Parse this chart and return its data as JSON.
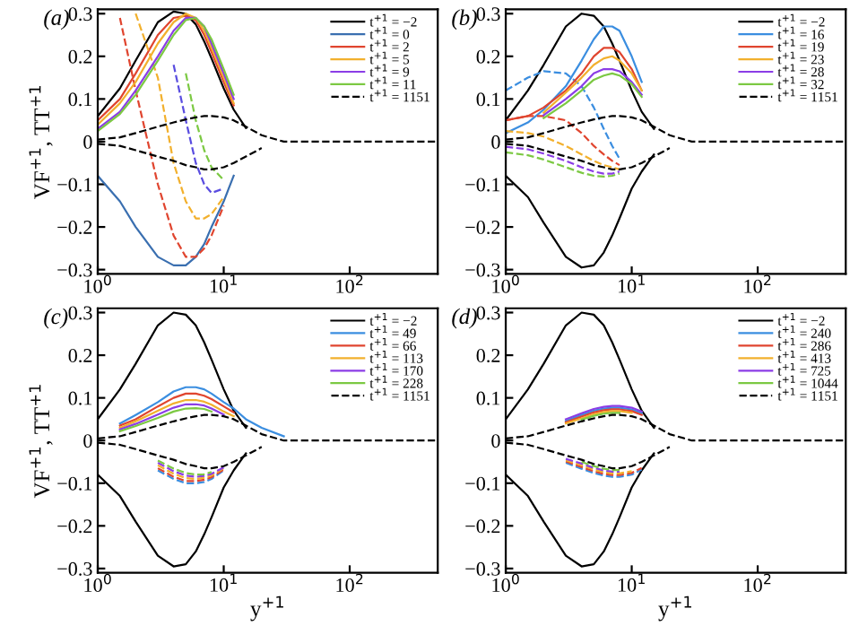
{
  "chart_data": [
    {
      "type": "line",
      "title": "(a)",
      "ylabel": "VF$^{+1}$, TT$^{+1}$",
      "log": "x",
      "legend": "top right",
      "xlim": [
        1,
        500
      ],
      "ylim": [
        -0.31,
        0.31
      ],
      "xticks": [
        {
          "value": 1,
          "label": "10$^{0}$"
        },
        {
          "value": 10,
          "label": "10$^{1}$"
        },
        {
          "value": 100,
          "label": "10$^{2}$"
        }
      ],
      "yticks": [
        {
          "value": -0.3,
          "label": "−0.3"
        },
        {
          "value": -0.2,
          "label": "−0.2"
        },
        {
          "value": -0.1,
          "label": "−0.1"
        },
        0,
        0.1,
        0.2,
        0.3
      ],
      "x": [
        1,
        1.5,
        2,
        3,
        4,
        5,
        6,
        7,
        8,
        10,
        12,
        15,
        20,
        30,
        50,
        100,
        500
      ],
      "series": [
        {
          "name": "t$^{+1}$ = −2",
          "color": "#000000",
          "line_style": "solid",
          "values": [
            0.06,
            0.125,
            0.19,
            0.28,
            0.305,
            0.3,
            0.275,
            0.235,
            0.195,
            0.125,
            0.075,
            0.032,
            null,
            null,
            null,
            null,
            null
          ]
        },
        {
          "name": "t$^{+1}$ = 0",
          "color": "#3a6fb0",
          "line_style": "solid",
          "values": [
            -0.08,
            -0.14,
            -0.2,
            -0.27,
            -0.29,
            -0.29,
            -0.27,
            -0.24,
            -0.2,
            -0.14,
            -0.08,
            null,
            null,
            null,
            null,
            null,
            null
          ]
        },
        {
          "name": "t$^{+1}$ = 2",
          "color": "#e0452f",
          "line_style": "solid",
          "values": [
            0.05,
            0.1,
            0.16,
            0.25,
            0.29,
            0.295,
            0.285,
            0.25,
            0.21,
            0.14,
            0.085,
            null,
            null,
            null,
            null,
            null,
            null
          ]
        },
        {
          "color": "#e0452f",
          "line_style": "dashed",
          "values": [
            null,
            0.29,
            0.12,
            -0.1,
            -0.22,
            -0.27,
            -0.27,
            -0.25,
            -0.22,
            -0.15,
            null,
            null,
            null,
            null,
            null,
            null,
            null
          ]
        },
        {
          "name": "t$^{+1}$ = 5",
          "color": "#f2b02d",
          "line_style": "solid",
          "values": [
            0.04,
            0.09,
            0.14,
            0.23,
            0.28,
            0.3,
            0.29,
            0.26,
            0.22,
            0.15,
            0.09,
            null,
            null,
            null,
            null,
            null,
            null
          ]
        },
        {
          "color": "#f2b02d",
          "line_style": "dashed",
          "values": [
            null,
            null,
            0.3,
            0.15,
            -0.05,
            -0.14,
            -0.18,
            -0.18,
            -0.17,
            -0.13,
            null,
            null,
            null,
            null,
            null,
            null,
            null
          ]
        },
        {
          "name": "t$^{+1}$ = 9",
          "color": "#8b3de6",
          "line_style": "solid",
          "values": [
            0.03,
            0.07,
            0.12,
            0.2,
            0.26,
            0.29,
            0.29,
            0.27,
            0.23,
            0.16,
            0.1,
            null,
            null,
            null,
            null,
            null,
            null
          ]
        },
        {
          "color": "#5a4de0",
          "line_style": "dashed",
          "values": [
            null,
            null,
            null,
            null,
            0.18,
            0.05,
            -0.05,
            -0.1,
            -0.12,
            -0.11,
            null,
            null,
            null,
            null,
            null,
            null,
            null
          ]
        },
        {
          "name": "t$^{+1}$ = 11",
          "color": "#7cc943",
          "line_style": "solid",
          "values": [
            0.025,
            0.065,
            0.11,
            0.19,
            0.25,
            0.285,
            0.29,
            0.27,
            0.24,
            0.17,
            0.11,
            null,
            null,
            null,
            null,
            null,
            null
          ]
        },
        {
          "color": "#7cc943",
          "line_style": "dashed",
          "values": [
            null,
            null,
            null,
            null,
            null,
            0.16,
            0.05,
            -0.02,
            -0.06,
            -0.09,
            null,
            null,
            null,
            null,
            null,
            null,
            null
          ]
        },
        {
          "name": "t$^{+1}$ = 1151",
          "color": "#000000",
          "line_style": "dashed",
          "values": [
            0.005,
            0.01,
            0.02,
            0.035,
            0.045,
            0.052,
            0.057,
            0.06,
            0.06,
            0.057,
            0.05,
            0.035,
            0.015,
            0,
            0,
            0,
            0
          ]
        },
        {
          "color": "#000000",
          "line_style": "dashed",
          "values": [
            -0.005,
            -0.01,
            -0.02,
            -0.035,
            -0.045,
            -0.055,
            -0.06,
            -0.065,
            -0.065,
            -0.06,
            -0.05,
            -0.035,
            -0.015,
            null,
            null,
            null,
            null
          ]
        }
      ]
    },
    {
      "type": "line",
      "title": "(b)",
      "log": "x",
      "legend": "top right",
      "xlim": [
        1,
        500
      ],
      "ylim": [
        -0.31,
        0.31
      ],
      "xticks": [
        {
          "value": 1,
          "label": "10$^{0}$"
        },
        {
          "value": 10,
          "label": "10$^{1}$"
        },
        {
          "value": 100,
          "label": "10$^{2}$"
        }
      ],
      "yticks": [
        {
          "value": -0.3,
          "label": "−0.3"
        },
        {
          "value": -0.2,
          "label": "−0.2"
        },
        {
          "value": -0.1,
          "label": "−0.1"
        },
        0,
        0.1,
        0.2,
        0.3
      ],
      "x": [
        1,
        1.5,
        2,
        3,
        4,
        5,
        6,
        7,
        8,
        10,
        12,
        15,
        20,
        30,
        50,
        100,
        500
      ],
      "series": [
        {
          "name": "t$^{+1}$ = −2",
          "color": "#000000",
          "line_style": "solid",
          "values": [
            0.05,
            0.12,
            0.18,
            0.27,
            0.3,
            0.295,
            0.27,
            0.23,
            0.19,
            0.12,
            0.07,
            0.03,
            null,
            null,
            null,
            null,
            null
          ]
        },
        {
          "color": "#000000",
          "line_style": "solid",
          "values": [
            -0.08,
            -0.13,
            -0.19,
            -0.27,
            -0.295,
            -0.29,
            -0.26,
            -0.22,
            -0.18,
            -0.11,
            -0.07,
            -0.03,
            null,
            null,
            null,
            null,
            null
          ]
        },
        {
          "name": "t$^{+1}$ = 16",
          "color": "#3b8ee0",
          "line_style": "solid",
          "values": [
            0.02,
            0.045,
            0.075,
            0.13,
            0.19,
            0.24,
            0.27,
            0.27,
            0.26,
            0.2,
            0.14,
            null,
            null,
            null,
            null,
            null,
            null
          ]
        },
        {
          "color": "#3b8ee0",
          "line_style": "dashed",
          "values": [
            0.12,
            0.15,
            0.165,
            0.16,
            0.13,
            0.08,
            0.03,
            -0.01,
            -0.04,
            null,
            null,
            null,
            null,
            null,
            null,
            null,
            null
          ]
        },
        {
          "name": "t$^{+1}$ = 19",
          "color": "#e0452f",
          "line_style": "solid",
          "values": [
            0.05,
            0.06,
            0.08,
            0.12,
            0.16,
            0.2,
            0.22,
            0.22,
            0.21,
            0.17,
            0.12,
            null,
            null,
            null,
            null,
            null,
            null
          ]
        },
        {
          "color": "#e0452f",
          "line_style": "dashed",
          "values": [
            0.05,
            0.06,
            0.06,
            0.05,
            0.02,
            -0.01,
            -0.03,
            -0.045,
            -0.055,
            null,
            null,
            null,
            null,
            null,
            null,
            null,
            null
          ]
        },
        {
          "name": "t$^{+1}$ = 23",
          "color": "#f2b02d",
          "line_style": "solid",
          "values": [
            null,
            null,
            0.068,
            0.115,
            0.15,
            0.18,
            0.195,
            0.2,
            0.19,
            0.16,
            0.12,
            null,
            null,
            null,
            null,
            null,
            null
          ]
        },
        {
          "color": "#f2b02d",
          "line_style": "dashed",
          "values": [
            0.025,
            0.02,
            0.012,
            -0.01,
            -0.03,
            -0.045,
            -0.055,
            -0.06,
            -0.065,
            null,
            null,
            null,
            null,
            null,
            null,
            null,
            null
          ]
        },
        {
          "name": "t$^{+1}$ = 28",
          "color": "#8b3de6",
          "line_style": "solid",
          "values": [
            null,
            null,
            0.062,
            0.1,
            0.13,
            0.16,
            0.17,
            0.17,
            0.165,
            0.14,
            0.11,
            null,
            null,
            null,
            null,
            null,
            null
          ]
        },
        {
          "color": "#8b3de6",
          "line_style": "dashed",
          "values": [
            -0.012,
            -0.018,
            -0.028,
            -0.045,
            -0.06,
            -0.07,
            -0.075,
            -0.075,
            -0.07,
            null,
            null,
            null,
            null,
            null,
            null,
            null,
            null
          ]
        },
        {
          "name": "t$^{+1}$ = 32",
          "color": "#7cc943",
          "line_style": "solid",
          "values": [
            null,
            null,
            0.055,
            0.09,
            0.12,
            0.145,
            0.155,
            0.16,
            0.155,
            0.135,
            0.105,
            null,
            null,
            null,
            null,
            null,
            null
          ]
        },
        {
          "color": "#7cc943",
          "line_style": "dashed",
          "values": [
            -0.025,
            -0.032,
            -0.042,
            -0.06,
            -0.073,
            -0.08,
            -0.082,
            -0.08,
            -0.075,
            null,
            null,
            null,
            null,
            null,
            null,
            null,
            null
          ]
        },
        {
          "name": "t$^{+1}$ = 1151",
          "color": "#000000",
          "line_style": "dashed",
          "values": [
            0.005,
            0.01,
            0.02,
            0.035,
            0.045,
            0.052,
            0.057,
            0.06,
            0.06,
            0.057,
            0.05,
            0.035,
            0.015,
            0,
            0,
            0,
            0
          ]
        },
        {
          "color": "#000000",
          "line_style": "dashed",
          "values": [
            -0.005,
            -0.01,
            -0.02,
            -0.035,
            -0.045,
            -0.055,
            -0.06,
            -0.065,
            -0.065,
            -0.06,
            -0.05,
            -0.035,
            -0.015,
            null,
            null,
            null,
            null
          ]
        }
      ]
    },
    {
      "type": "line",
      "title": "(c)",
      "xlabel": "y$^{+1}$",
      "ylabel": "VF$^{+1}$, TT$^{+1}$",
      "log": "x",
      "legend": "top right",
      "xlim": [
        1,
        500
      ],
      "ylim": [
        -0.31,
        0.31
      ],
      "xticks": [
        {
          "value": 1,
          "label": "10$^{0}$"
        },
        {
          "value": 10,
          "label": "10$^{1}$"
        },
        {
          "value": 100,
          "label": "10$^{2}$"
        }
      ],
      "yticks": [
        {
          "value": -0.3,
          "label": "−0.3"
        },
        {
          "value": -0.2,
          "label": "−0.2"
        },
        {
          "value": -0.1,
          "label": "−0.1"
        },
        0,
        0.1,
        0.2,
        0.3
      ],
      "x": [
        1,
        1.5,
        2,
        3,
        4,
        5,
        6,
        7,
        8,
        10,
        12,
        15,
        20,
        30,
        50,
        100,
        500
      ],
      "series": [
        {
          "name": "t$^{+1}$ = −2",
          "color": "#000000",
          "line_style": "solid",
          "values": [
            0.05,
            0.12,
            0.18,
            0.27,
            0.3,
            0.295,
            0.27,
            0.23,
            0.19,
            0.12,
            0.07,
            0.03,
            null,
            null,
            null,
            null,
            null
          ]
        },
        {
          "color": "#000000",
          "line_style": "solid",
          "values": [
            -0.08,
            -0.13,
            -0.19,
            -0.27,
            -0.295,
            -0.29,
            -0.26,
            -0.22,
            -0.18,
            -0.11,
            -0.07,
            -0.03,
            null,
            null,
            null,
            null,
            null
          ]
        },
        {
          "name": "t$^{+1}$ = 49",
          "color": "#3b8ee0",
          "line_style": "solid",
          "values": [
            null,
            0.04,
            0.06,
            0.09,
            0.115,
            0.125,
            0.125,
            0.12,
            0.11,
            0.09,
            0.075,
            0.05,
            0.03,
            0.01,
            null,
            null,
            null
          ]
        },
        {
          "color": "#3b8ee0",
          "line_style": "dashed",
          "values": [
            null,
            null,
            null,
            -0.07,
            -0.09,
            -0.1,
            -0.1,
            -0.097,
            -0.09,
            -0.07,
            null,
            null,
            null,
            null,
            null,
            null,
            null
          ]
        },
        {
          "name": "t$^{+1}$ = 66",
          "color": "#e0452f",
          "line_style": "solid",
          "values": [
            null,
            0.035,
            0.05,
            0.08,
            0.1,
            0.11,
            0.11,
            0.105,
            0.097,
            0.08,
            0.066,
            null,
            null,
            null,
            null,
            null,
            null
          ]
        },
        {
          "color": "#e0452f",
          "line_style": "dashed",
          "values": [
            null,
            null,
            null,
            -0.065,
            -0.085,
            -0.095,
            -0.095,
            -0.092,
            -0.086,
            -0.068,
            null,
            null,
            null,
            null,
            null,
            null,
            null
          ]
        },
        {
          "name": "t$^{+1}$ = 113",
          "color": "#f2b02d",
          "line_style": "solid",
          "values": [
            null,
            0.03,
            0.045,
            0.07,
            0.087,
            0.095,
            0.095,
            0.091,
            0.084,
            0.068,
            0.057,
            null,
            null,
            null,
            null,
            null,
            null
          ]
        },
        {
          "color": "#f2b02d",
          "line_style": "dashed",
          "values": [
            null,
            null,
            null,
            -0.058,
            -0.078,
            -0.088,
            -0.09,
            -0.087,
            -0.082,
            -0.065,
            null,
            null,
            null,
            null,
            null,
            null,
            null
          ]
        },
        {
          "name": "t$^{+1}$ = 170",
          "color": "#8b3de6",
          "line_style": "solid",
          "values": [
            null,
            0.026,
            0.039,
            0.061,
            0.077,
            0.085,
            0.085,
            0.082,
            0.075,
            0.061,
            null,
            null,
            null,
            null,
            null,
            null,
            null
          ]
        },
        {
          "color": "#8b3de6",
          "line_style": "dashed",
          "values": [
            null,
            null,
            null,
            -0.052,
            -0.072,
            -0.082,
            -0.085,
            -0.083,
            -0.078,
            -0.063,
            null,
            null,
            null,
            null,
            null,
            null,
            null
          ]
        },
        {
          "name": "t$^{+1}$ = 228",
          "color": "#7cc943",
          "line_style": "solid",
          "values": [
            null,
            0.022,
            0.034,
            0.053,
            0.068,
            0.075,
            0.076,
            0.074,
            0.068,
            null,
            null,
            null,
            null,
            null,
            null,
            null,
            null
          ]
        },
        {
          "color": "#7cc943",
          "line_style": "dashed",
          "values": [
            null,
            null,
            null,
            -0.047,
            -0.066,
            -0.076,
            -0.08,
            -0.079,
            -0.074,
            null,
            null,
            null,
            null,
            null,
            null,
            null,
            null
          ]
        },
        {
          "name": "t$^{+1}$ = 1151",
          "color": "#000000",
          "line_style": "dashed",
          "values": [
            0.005,
            0.01,
            0.02,
            0.035,
            0.045,
            0.052,
            0.057,
            0.06,
            0.06,
            0.057,
            0.05,
            0.035,
            0.015,
            0,
            0,
            0,
            0
          ]
        },
        {
          "color": "#000000",
          "line_style": "dashed",
          "values": [
            -0.005,
            -0.01,
            -0.02,
            -0.035,
            -0.045,
            -0.055,
            -0.06,
            -0.065,
            -0.065,
            -0.06,
            -0.05,
            -0.035,
            -0.015,
            null,
            null,
            null,
            null
          ]
        }
      ]
    },
    {
      "type": "line",
      "title": "(d)",
      "xlabel": "y$^{+1}$",
      "log": "x",
      "legend": "top right",
      "xlim": [
        1,
        500
      ],
      "ylim": [
        -0.31,
        0.31
      ],
      "xticks": [
        {
          "value": 1,
          "label": "10$^{0}$"
        },
        {
          "value": 10,
          "label": "10$^{1}$"
        },
        {
          "value": 100,
          "label": "10$^{2}$"
        }
      ],
      "yticks": [
        {
          "value": -0.3,
          "label": "−0.3"
        },
        {
          "value": -0.2,
          "label": "−0.2"
        },
        {
          "value": -0.1,
          "label": "−0.1"
        },
        0,
        0.1,
        0.2,
        0.3
      ],
      "x": [
        1,
        1.5,
        2,
        3,
        4,
        5,
        6,
        7,
        8,
        10,
        12,
        15,
        20,
        30,
        50,
        100,
        500
      ],
      "series": [
        {
          "name": "t$^{+1}$ = −2",
          "color": "#000000",
          "line_style": "solid",
          "values": [
            0.05,
            0.12,
            0.18,
            0.27,
            0.3,
            0.295,
            0.27,
            0.23,
            0.19,
            0.12,
            0.07,
            0.03,
            null,
            null,
            null,
            null,
            null
          ]
        },
        {
          "color": "#000000",
          "line_style": "solid",
          "values": [
            -0.08,
            -0.13,
            -0.19,
            -0.27,
            -0.295,
            -0.29,
            -0.26,
            -0.22,
            -0.18,
            -0.11,
            -0.07,
            -0.03,
            null,
            null,
            null,
            null,
            null
          ]
        },
        {
          "name": "t$^{+1}$ = 240",
          "color": "#3b8ee0",
          "line_style": "solid",
          "values": [
            null,
            null,
            null,
            0.046,
            0.06,
            0.07,
            0.075,
            0.077,
            0.077,
            0.073,
            0.064,
            null,
            null,
            null,
            null,
            null,
            null
          ]
        },
        {
          "color": "#3b8ee0",
          "line_style": "dashed",
          "values": [
            null,
            null,
            null,
            -0.052,
            -0.066,
            -0.076,
            -0.082,
            -0.085,
            -0.085,
            -0.08,
            -0.068,
            null,
            null,
            null,
            null,
            null,
            null
          ]
        },
        {
          "name": "t$^{+1}$ = 286",
          "color": "#e0452f",
          "line_style": "solid",
          "values": [
            null,
            null,
            null,
            0.043,
            0.056,
            0.066,
            0.071,
            0.073,
            0.073,
            0.069,
            0.06,
            null,
            null,
            null,
            null,
            null,
            null
          ]
        },
        {
          "color": "#e0452f",
          "line_style": "dashed",
          "values": [
            null,
            null,
            null,
            -0.049,
            -0.062,
            -0.072,
            -0.078,
            -0.081,
            -0.081,
            -0.076,
            -0.064,
            null,
            null,
            null,
            null,
            null,
            null
          ]
        },
        {
          "name": "t$^{+1}$ = 413",
          "color": "#f2b02d",
          "line_style": "solid",
          "values": [
            null,
            null,
            null,
            0.04,
            0.052,
            0.062,
            0.067,
            0.069,
            0.069,
            0.065,
            null,
            null,
            null,
            null,
            null,
            null,
            null
          ]
        },
        {
          "color": "#f2b02d",
          "line_style": "dashed",
          "values": [
            null,
            null,
            null,
            -0.046,
            -0.058,
            -0.068,
            -0.074,
            -0.077,
            -0.077,
            -0.072,
            null,
            null,
            null,
            null,
            null,
            null,
            null
          ]
        },
        {
          "name": "t$^{+1}$ = 725",
          "color": "#8b3de6",
          "line_style": "solid",
          "values": [
            null,
            null,
            null,
            0.05,
            0.064,
            0.074,
            0.079,
            0.081,
            0.081,
            0.077,
            0.068,
            null,
            null,
            null,
            null,
            null,
            null
          ]
        },
        {
          "color": "#8b3de6",
          "line_style": "dashed",
          "values": [
            null,
            null,
            null,
            -0.043,
            -0.054,
            -0.064,
            -0.07,
            -0.073,
            -0.073,
            null,
            null,
            null,
            null,
            null,
            null,
            null,
            null
          ]
        },
        {
          "name": "t$^{+1}$ = 1044",
          "color": "#7cc943",
          "line_style": "solid",
          "values": [
            null,
            null,
            null,
            null,
            0.049,
            0.058,
            0.063,
            0.065,
            0.065,
            null,
            null,
            null,
            null,
            null,
            null,
            null,
            null
          ]
        },
        {
          "color": "#7cc943",
          "line_style": "dashed",
          "values": [
            null,
            null,
            null,
            null,
            -0.05,
            -0.06,
            -0.066,
            -0.069,
            -0.069,
            null,
            null,
            null,
            null,
            null,
            null,
            null,
            null
          ]
        },
        {
          "name": "t$^{+1}$ = 1151",
          "color": "#000000",
          "line_style": "dashed",
          "values": [
            0.005,
            0.01,
            0.02,
            0.035,
            0.045,
            0.052,
            0.057,
            0.06,
            0.06,
            0.057,
            0.05,
            0.035,
            0.015,
            0,
            0,
            0,
            0
          ]
        },
        {
          "color": "#000000",
          "line_style": "dashed",
          "values": [
            -0.005,
            -0.01,
            -0.02,
            -0.035,
            -0.045,
            -0.055,
            -0.06,
            -0.065,
            -0.065,
            -0.06,
            -0.05,
            -0.035,
            -0.015,
            null,
            null,
            null,
            null
          ]
        }
      ]
    }
  ]
}
